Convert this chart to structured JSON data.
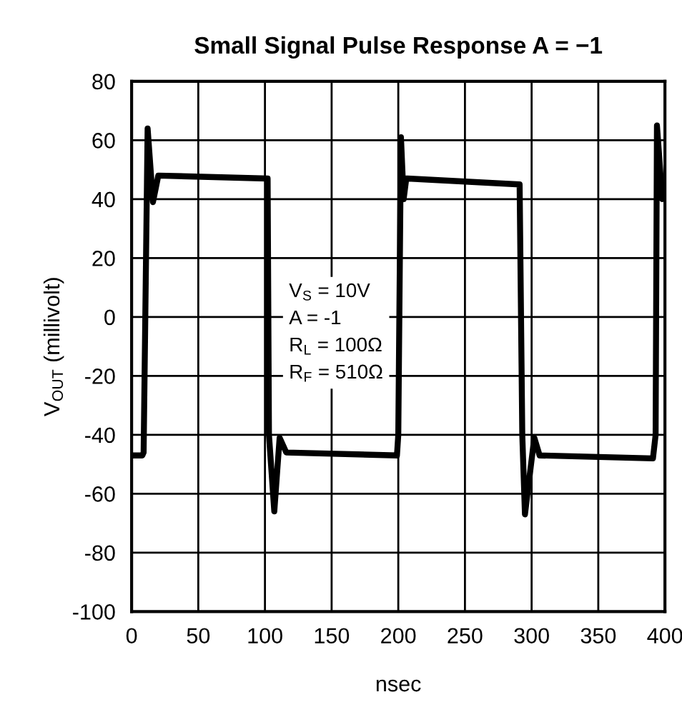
{
  "chart_data": {
    "type": "line",
    "title": "Small Signal Pulse Response A = −1",
    "xlabel": "nsec",
    "ylabel": "V$_{OUT}$ (millivolt)",
    "x": [
      0,
      8,
      9,
      12,
      16,
      20,
      102,
      103,
      107,
      111,
      116,
      199,
      200,
      202,
      204,
      206,
      207,
      291,
      293,
      295,
      302,
      306,
      391,
      393,
      394,
      398,
      400
    ],
    "series": [
      {
        "color": "#000000",
        "values": [
          -47,
          -47,
          -46,
          64,
          39,
          48,
          47,
          -40,
          -66,
          -41,
          -46,
          -47,
          -40,
          61,
          40,
          47,
          47,
          45,
          -40,
          -67,
          -41,
          -47,
          -48,
          -40,
          65,
          40,
          45
        ]
      }
    ],
    "xlim": [
      0,
      400
    ],
    "xticks": [
      0,
      50,
      100,
      150,
      200,
      250,
      300,
      350,
      400
    ],
    "ylim": [
      -100,
      80
    ],
    "yticks": [
      -100,
      -80,
      -60,
      -40,
      -20,
      0,
      20,
      40,
      60,
      80
    ],
    "grid": true,
    "marker": "none",
    "line_style": "solid",
    "annotations": [
      "V$_{S}$ = 10V",
      "A = -1",
      "R$_{L}$ = 100Ω",
      "R$_{F}$ = 510Ω"
    ]
  }
}
